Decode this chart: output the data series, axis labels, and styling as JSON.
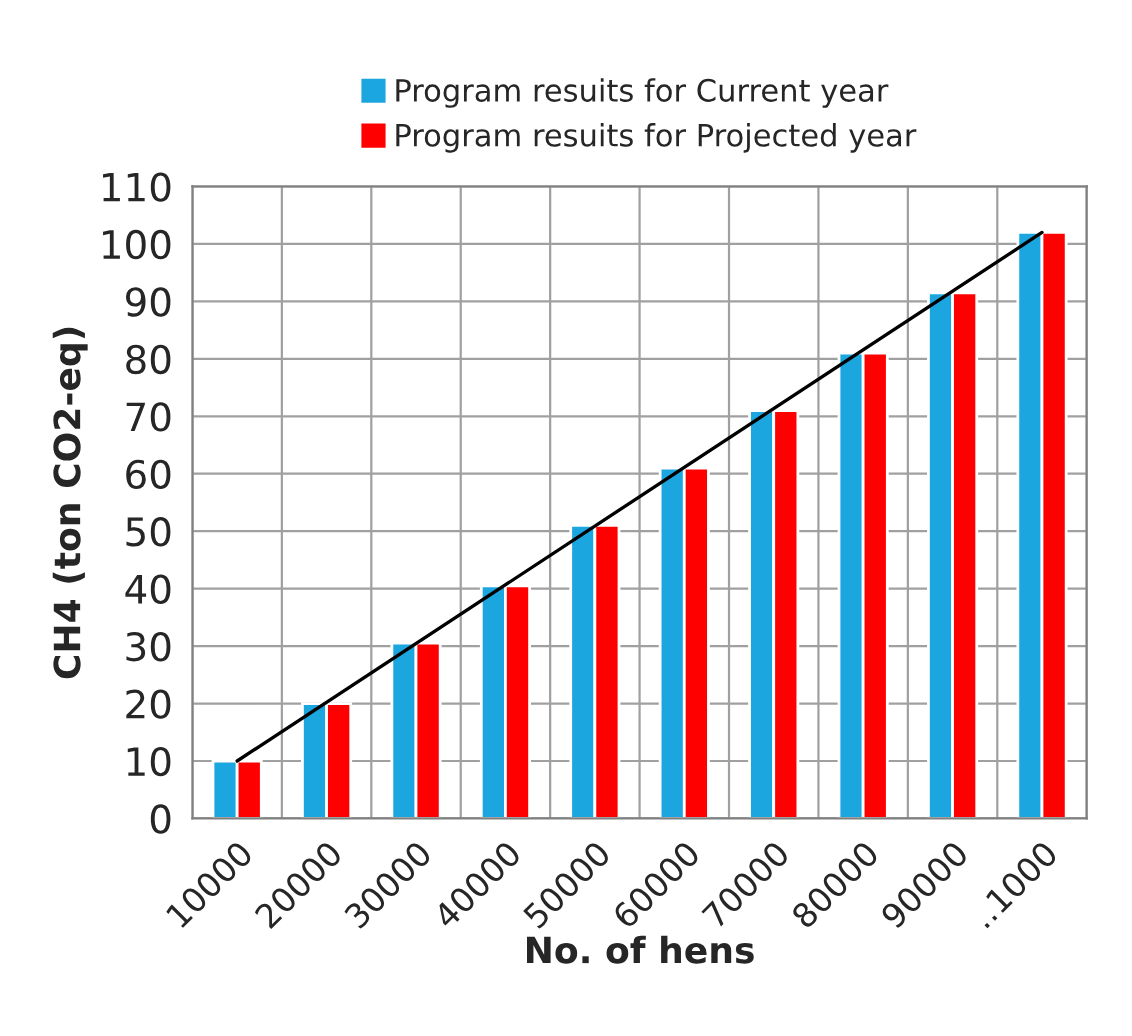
{
  "chart_data": {
    "type": "bar",
    "categories": [
      "10000",
      "20000",
      "30000",
      "40000",
      "50000",
      "60000",
      "70000",
      "80000",
      "90000",
      "..1000"
    ],
    "series": [
      {
        "name": "Program resuits for Current year",
        "color": "#1ba6e0",
        "values": [
          10,
          20,
          30.5,
          40.5,
          51,
          61,
          71,
          81,
          91.5,
          102
        ]
      },
      {
        "name": "Program resuits for Projected year",
        "color": "#ff0000",
        "values": [
          10,
          20,
          30.5,
          40.5,
          51,
          61,
          71,
          81,
          91.5,
          102
        ]
      },
      {
        "type": "line",
        "color": "#000000",
        "x": [
          "10000",
          "..1000"
        ],
        "values": [
          10,
          102
        ]
      }
    ],
    "xlabel": "No. of hens",
    "ylabel": "CH4 (ton CO2-eq)",
    "ylim": [
      0,
      110
    ],
    "yticks": [
      0,
      10,
      20,
      30,
      40,
      50,
      60,
      70,
      80,
      90,
      100,
      110
    ],
    "grid": true,
    "legend": "top"
  }
}
